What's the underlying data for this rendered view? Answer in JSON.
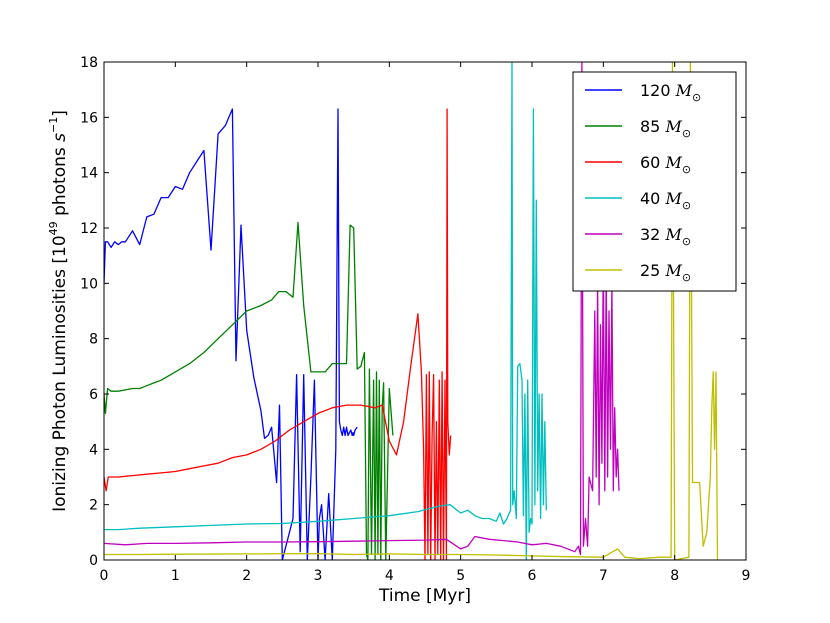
{
  "chart_data": {
    "type": "line",
    "title": "",
    "xlabel": "Time [Myr]",
    "ylabel_main": "Ionizing Photon Luminosities [",
    "ylabel_exp_base": "10",
    "ylabel_exp": "49",
    "ylabel_units": " photons ",
    "ylabel_s": "s",
    "ylabel_s_exp": "−1",
    "ylabel_close": "]",
    "xlim": [
      0,
      9
    ],
    "ylim": [
      0,
      18
    ],
    "xticks": [
      "0",
      "1",
      "2",
      "3",
      "4",
      "5",
      "6",
      "7",
      "8",
      "9"
    ],
    "yticks": [
      "0",
      "2",
      "4",
      "6",
      "8",
      "10",
      "12",
      "14",
      "16",
      "18"
    ],
    "legend_position": "top-right",
    "legend_symbol": "M",
    "legend_sub": "⊙",
    "series": [
      {
        "name": "120",
        "color": "#0000ff",
        "x": [
          0.0,
          0.02,
          0.05,
          0.1,
          0.15,
          0.2,
          0.25,
          0.3,
          0.4,
          0.5,
          0.6,
          0.7,
          0.8,
          0.9,
          1.0,
          1.1,
          1.2,
          1.3,
          1.4,
          1.5,
          1.6,
          1.7,
          1.8,
          1.85,
          1.92,
          2.0,
          2.1,
          2.2,
          2.25,
          2.3,
          2.35,
          2.42,
          2.46,
          2.5,
          2.55,
          2.65,
          2.7,
          2.75,
          2.8,
          2.85,
          2.9,
          2.95,
          3.0,
          3.02,
          3.05,
          3.1,
          3.15,
          3.2,
          3.25,
          3.28,
          3.3,
          3.32,
          3.34,
          3.36,
          3.38,
          3.4,
          3.42,
          3.44,
          3.46,
          3.48,
          3.49,
          3.5,
          3.52,
          3.55
        ],
        "y": [
          10.0,
          11.5,
          11.5,
          11.3,
          11.5,
          11.4,
          11.5,
          11.5,
          11.9,
          11.4,
          12.4,
          12.5,
          13.1,
          13.1,
          13.5,
          13.4,
          14.0,
          14.4,
          14.8,
          11.2,
          15.4,
          15.7,
          16.3,
          7.2,
          12.1,
          8.3,
          6.6,
          5.4,
          4.4,
          4.5,
          4.8,
          2.8,
          5.6,
          0.0,
          0.5,
          1.5,
          6.7,
          0.3,
          6.7,
          0.0,
          3.0,
          6.5,
          0.0,
          1.5,
          2.0,
          0.0,
          2.4,
          0.0,
          4.0,
          16.3,
          5.0,
          4.7,
          4.5,
          4.8,
          4.5,
          4.8,
          4.5,
          4.6,
          4.7,
          4.5,
          4.6,
          4.5,
          4.7,
          4.8
        ]
      },
      {
        "name": "85",
        "color": "#008000",
        "x": [
          0.0,
          0.02,
          0.05,
          0.1,
          0.2,
          0.3,
          0.4,
          0.5,
          0.6,
          0.7,
          0.8,
          1.0,
          1.2,
          1.4,
          1.6,
          1.8,
          2.0,
          2.2,
          2.35,
          2.45,
          2.55,
          2.65,
          2.72,
          2.8,
          2.9,
          3.0,
          3.1,
          3.2,
          3.3,
          3.4,
          3.45,
          3.5,
          3.55,
          3.6,
          3.65,
          3.68,
          3.7,
          3.72,
          3.75,
          3.78,
          3.8,
          3.82,
          3.84,
          3.86,
          3.88,
          3.9,
          3.92,
          3.95,
          4.0,
          4.05
        ],
        "y": [
          6.0,
          5.3,
          6.2,
          6.1,
          6.1,
          6.15,
          6.2,
          6.2,
          6.3,
          6.4,
          6.5,
          6.8,
          7.1,
          7.5,
          8.0,
          8.5,
          9.0,
          9.2,
          9.4,
          9.7,
          9.7,
          9.5,
          12.2,
          9.2,
          6.8,
          6.8,
          6.8,
          7.1,
          7.1,
          7.1,
          12.1,
          12.0,
          6.9,
          7.0,
          7.5,
          0.2,
          0.0,
          6.9,
          0.2,
          6.5,
          0.0,
          6.8,
          0.2,
          6.5,
          0.0,
          5.5,
          6.4,
          0.0,
          6.2,
          4.5
        ]
      },
      {
        "name": "60",
        "color": "#ff0000",
        "x": [
          0.0,
          0.03,
          0.06,
          0.1,
          0.2,
          0.4,
          0.6,
          0.8,
          1.0,
          1.2,
          1.4,
          1.6,
          1.8,
          2.0,
          2.2,
          2.4,
          2.6,
          2.8,
          3.0,
          3.2,
          3.4,
          3.6,
          3.8,
          3.9,
          4.0,
          4.1,
          4.2,
          4.3,
          4.4,
          4.45,
          4.48,
          4.5,
          4.52,
          4.54,
          4.56,
          4.58,
          4.6,
          4.62,
          4.64,
          4.66,
          4.68,
          4.7,
          4.72,
          4.74,
          4.76,
          4.78,
          4.8,
          4.81,
          4.82,
          4.84,
          4.86
        ],
        "y": [
          3.0,
          2.5,
          3.0,
          3.0,
          3.0,
          3.05,
          3.1,
          3.15,
          3.2,
          3.3,
          3.4,
          3.5,
          3.7,
          3.8,
          4.0,
          4.3,
          4.7,
          5.0,
          5.3,
          5.5,
          5.6,
          5.6,
          5.5,
          5.6,
          4.3,
          3.8,
          5.0,
          7.0,
          8.9,
          6.8,
          4.0,
          0.0,
          6.7,
          0.2,
          6.8,
          0.0,
          4.5,
          6.7,
          0.0,
          5.0,
          0.2,
          6.5,
          0.0,
          6.8,
          0.0,
          6.5,
          0.0,
          16.3,
          5.0,
          3.8,
          4.5
        ]
      },
      {
        "name": "40",
        "color": "#00bfbf",
        "x": [
          0.0,
          0.2,
          0.5,
          1.0,
          1.5,
          2.0,
          2.5,
          3.0,
          3.5,
          4.0,
          4.4,
          4.7,
          4.85,
          5.0,
          5.1,
          5.2,
          5.3,
          5.4,
          5.5,
          5.55,
          5.6,
          5.65,
          5.7,
          5.72,
          5.73,
          5.75,
          5.78,
          5.8,
          5.83,
          5.86,
          5.88,
          5.9,
          5.92,
          5.94,
          5.96,
          5.98,
          6.0,
          6.02,
          6.04,
          6.06,
          6.08,
          6.1,
          6.12,
          6.14,
          6.16,
          6.18,
          6.2
        ],
        "y": [
          1.1,
          1.1,
          1.15,
          1.2,
          1.25,
          1.3,
          1.32,
          1.4,
          1.5,
          1.6,
          1.75,
          1.95,
          2.0,
          1.7,
          1.8,
          1.6,
          1.5,
          1.5,
          1.4,
          1.7,
          1.3,
          1.5,
          1.8,
          18.0,
          2.0,
          2.5,
          1.5,
          7.0,
          7.1,
          6.5,
          1.6,
          6.0,
          0.0,
          6.5,
          1.0,
          1.5,
          1.3,
          16.3,
          2.0,
          13.0,
          2.5,
          6.0,
          1.5,
          6.0,
          2.0,
          5.0,
          1.8
        ]
      },
      {
        "name": "32",
        "color": "#bf00bf",
        "x": [
          0.0,
          0.3,
          0.6,
          1.0,
          1.5,
          2.0,
          2.5,
          3.0,
          3.5,
          4.0,
          4.5,
          4.8,
          5.0,
          5.1,
          5.2,
          5.4,
          5.6,
          5.8,
          6.0,
          6.2,
          6.4,
          6.6,
          6.65,
          6.68,
          6.7,
          6.72,
          6.75,
          6.78,
          6.8,
          6.85,
          6.88,
          6.9,
          6.92,
          6.94,
          6.96,
          6.98,
          7.0,
          7.02,
          7.04,
          7.06,
          7.08,
          7.1,
          7.12,
          7.14,
          7.16,
          7.18,
          7.2,
          7.22
        ],
        "y": [
          0.6,
          0.55,
          0.6,
          0.6,
          0.62,
          0.65,
          0.65,
          0.66,
          0.68,
          0.7,
          0.72,
          0.75,
          0.4,
          0.5,
          0.85,
          0.75,
          0.7,
          0.65,
          0.55,
          0.6,
          0.5,
          0.3,
          0.5,
          0.2,
          18.0,
          0.5,
          1.5,
          0.5,
          3.0,
          2.5,
          9.0,
          3.0,
          10.0,
          2.0,
          8.5,
          3.5,
          11.0,
          2.5,
          10.5,
          3.0,
          9.0,
          4.0,
          10.0,
          2.5,
          5.5,
          3.0,
          4.0,
          2.5
        ]
      },
      {
        "name": "25",
        "color": "#bfbf00",
        "x": [
          0.0,
          0.5,
          1.0,
          2.0,
          3.0,
          3.5,
          4.0,
          4.5,
          5.0,
          5.5,
          6.0,
          6.5,
          7.0,
          7.2,
          7.3,
          7.5,
          7.8,
          7.95,
          7.97,
          8.0,
          8.2,
          8.22,
          8.25,
          8.35,
          8.4,
          8.45,
          8.5,
          8.52,
          8.54,
          8.56,
          8.58,
          8.6
        ],
        "y": [
          0.2,
          0.2,
          0.21,
          0.22,
          0.23,
          0.2,
          0.22,
          0.2,
          0.2,
          0.18,
          0.15,
          0.12,
          0.1,
          0.4,
          0.1,
          0.05,
          0.1,
          0.1,
          18.0,
          0.0,
          0.1,
          18.0,
          2.8,
          2.8,
          0.5,
          1.0,
          3.0,
          5.5,
          6.8,
          4.0,
          6.8,
          0.0
        ]
      }
    ]
  }
}
